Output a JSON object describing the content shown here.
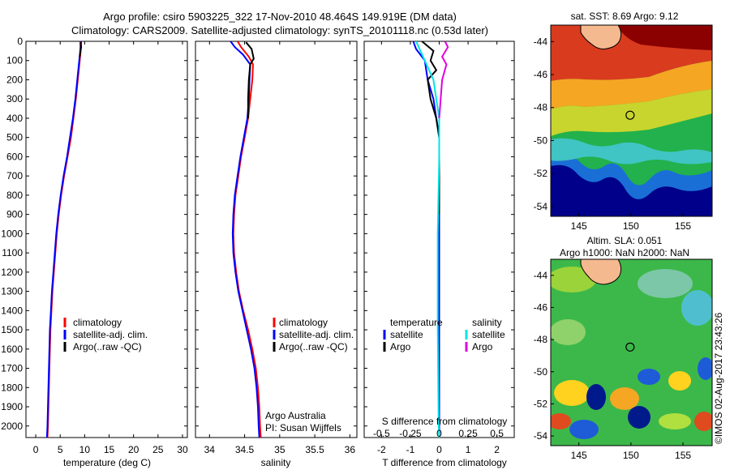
{
  "header": {
    "line1": "Argo profile: csiro 5903225_322 17-Nov-2010 48.464S 149.919E (DM data)",
    "line2": "Climatology: CARS2009. Satellite-adjusted climatology: synTS_20101118.nc (0.53d later)"
  },
  "watermark": "©IMOS 02-Aug-2017 23:43:26",
  "colors": {
    "climatology": "#ff0000",
    "satellite": "#0000ff",
    "argo": "#000000",
    "sal_satellite": "#00e5e5",
    "sal_argo": "#e000e0",
    "land": "#f5b98f"
  },
  "depth_ticks": [
    "0",
    "100",
    "200",
    "300",
    "400",
    "500",
    "600",
    "700",
    "800",
    "900",
    "1000",
    "1100",
    "1200",
    "1300",
    "1400",
    "1500",
    "1600",
    "1700",
    "1800",
    "1900",
    "2000"
  ],
  "chart_data": [
    {
      "type": "line",
      "xlabel": "temperature (deg C)",
      "ylabel": "",
      "xlim": [
        -2,
        31
      ],
      "ylim": [
        2060,
        0
      ],
      "xticks": [
        "0",
        "5",
        "10",
        "15",
        "20",
        "25",
        "30"
      ],
      "legend": {
        "placement": "middle-left",
        "entries": [
          "climatology",
          "satellite-adj. clim.",
          "Argo(..raw -QC)"
        ]
      },
      "series": [
        {
          "name": "climatology",
          "color": "#ff0000",
          "points": [
            [
              9.1,
              0
            ],
            [
              9.2,
              50
            ],
            [
              9.0,
              100
            ],
            [
              8.6,
              200
            ],
            [
              8.2,
              300
            ],
            [
              7.7,
              400
            ],
            [
              7.2,
              500
            ],
            [
              6.5,
              600
            ],
            [
              5.8,
              700
            ],
            [
              5.2,
              800
            ],
            [
              4.7,
              900
            ],
            [
              4.3,
              1000
            ],
            [
              4.0,
              1100
            ],
            [
              3.7,
              1200
            ],
            [
              3.4,
              1300
            ],
            [
              3.2,
              1400
            ],
            [
              3.0,
              1500
            ],
            [
              2.9,
              1600
            ],
            [
              2.8,
              1700
            ],
            [
              2.7,
              1800
            ],
            [
              2.6,
              1900
            ],
            [
              2.5,
              2000
            ],
            [
              2.4,
              2060
            ]
          ]
        },
        {
          "name": "satellite-adj. clim.",
          "color": "#0000ff",
          "points": [
            [
              9.3,
              0
            ],
            [
              9.1,
              50
            ],
            [
              8.9,
              100
            ],
            [
              8.5,
              200
            ],
            [
              8.1,
              300
            ],
            [
              7.6,
              400
            ],
            [
              7.0,
              500
            ],
            [
              6.4,
              600
            ],
            [
              5.7,
              700
            ],
            [
              5.1,
              800
            ],
            [
              4.6,
              900
            ],
            [
              4.2,
              1000
            ],
            [
              3.9,
              1100
            ],
            [
              3.6,
              1200
            ],
            [
              3.3,
              1300
            ],
            [
              3.1,
              1400
            ],
            [
              2.9,
              1500
            ],
            [
              2.8,
              1600
            ],
            [
              2.7,
              1700
            ],
            [
              2.6,
              1800
            ],
            [
              2.5,
              1900
            ],
            [
              2.4,
              2000
            ],
            [
              2.3,
              2060
            ]
          ]
        },
        {
          "name": "Argo(..raw -QC)",
          "color": "#000000",
          "points": [
            [
              9.2,
              5
            ],
            [
              9.3,
              30
            ],
            [
              9.1,
              60
            ],
            [
              9.0,
              80
            ]
          ]
        }
      ]
    },
    {
      "type": "line",
      "xlabel": "salinity",
      "ylabel": "",
      "xlim": [
        33.8,
        36.1
      ],
      "ylim": [
        2060,
        0
      ],
      "xticks": [
        "34",
        "34.5",
        "35",
        "35.5",
        "36"
      ],
      "legend": {
        "placement": "middle-right",
        "entries": [
          "climatology",
          "satellite-adj. clim.",
          "Argo(..raw -QC)"
        ]
      },
      "annotations": [
        "Argo Australia",
        "PI: Susan Wijffels"
      ],
      "series": [
        {
          "name": "climatology",
          "color": "#ff0000",
          "points": [
            [
              34.4,
              0
            ],
            [
              34.45,
              30
            ],
            [
              34.56,
              80
            ],
            [
              34.62,
              120
            ],
            [
              34.61,
              200
            ],
            [
              34.58,
              300
            ],
            [
              34.55,
              400
            ],
            [
              34.5,
              500
            ],
            [
              34.45,
              600
            ],
            [
              34.41,
              700
            ],
            [
              34.37,
              800
            ],
            [
              34.35,
              900
            ],
            [
              34.34,
              1000
            ],
            [
              34.35,
              1100
            ],
            [
              34.38,
              1200
            ],
            [
              34.42,
              1300
            ],
            [
              34.48,
              1400
            ],
            [
              34.55,
              1500
            ],
            [
              34.61,
              1600
            ],
            [
              34.66,
              1700
            ],
            [
              34.69,
              1800
            ],
            [
              34.71,
              1900
            ],
            [
              34.72,
              2000
            ],
            [
              34.73,
              2060
            ]
          ]
        },
        {
          "name": "satellite-adj. clim.",
          "color": "#0000ff",
          "points": [
            [
              34.3,
              0
            ],
            [
              34.36,
              30
            ],
            [
              34.48,
              70
            ],
            [
              34.58,
              120
            ],
            [
              34.57,
              200
            ],
            [
              34.56,
              300
            ],
            [
              34.54,
              400
            ],
            [
              34.49,
              500
            ],
            [
              34.44,
              600
            ],
            [
              34.4,
              700
            ],
            [
              34.36,
              800
            ],
            [
              34.34,
              900
            ],
            [
              34.33,
              1000
            ],
            [
              34.34,
              1100
            ],
            [
              34.37,
              1200
            ],
            [
              34.41,
              1300
            ],
            [
              34.47,
              1400
            ],
            [
              34.53,
              1500
            ],
            [
              34.59,
              1600
            ],
            [
              34.64,
              1700
            ],
            [
              34.67,
              1800
            ],
            [
              34.69,
              1900
            ],
            [
              34.7,
              2000
            ],
            [
              34.71,
              2060
            ]
          ]
        },
        {
          "name": "Argo(..raw -QC)",
          "color": "#000000",
          "points": [
            [
              34.52,
              5
            ],
            [
              34.6,
              40
            ],
            [
              34.63,
              90
            ],
            [
              34.58,
              120
            ],
            [
              34.56,
              200
            ],
            [
              34.55,
              300
            ],
            [
              34.55,
              400
            ]
          ]
        }
      ]
    },
    {
      "type": "line",
      "xlabel": "T difference from climatology",
      "xlabel_top": "S difference from climatology",
      "ylabel": "",
      "xlim": [
        -2.6,
        2.6
      ],
      "ylim": [
        2060,
        0
      ],
      "xticks": [
        "-2",
        "-1",
        "0",
        "1",
        "2"
      ],
      "xticks_top": [
        "-0.5",
        "-0.25",
        "0",
        "0.25",
        "0.5"
      ],
      "legend": {
        "placement": "middle",
        "entries": [
          "temperature",
          "satellite",
          "Argo",
          "salinity",
          "satellite",
          "Argo"
        ]
      },
      "series": [
        {
          "name": "satellite",
          "group": "temperature",
          "color": "#0000ff",
          "points": [
            [
              -0.9,
              0
            ],
            [
              -0.8,
              40
            ],
            [
              -0.5,
              100
            ],
            [
              -0.4,
              200
            ],
            [
              -0.2,
              300
            ],
            [
              -0.1,
              400
            ],
            [
              0,
              500
            ],
            [
              0,
              700
            ],
            [
              0,
              1000
            ],
            [
              0,
              1500
            ],
            [
              0,
              2000
            ],
            [
              0,
              2060
            ]
          ]
        },
        {
          "name": "Argo",
          "group": "temperature",
          "color": "#000000",
          "points": [
            [
              -0.6,
              0
            ],
            [
              -0.2,
              50
            ],
            [
              -0.3,
              100
            ],
            [
              -0.1,
              150
            ],
            [
              -0.4,
              200
            ],
            [
              -0.3,
              300
            ],
            [
              -0.1,
              400
            ],
            [
              0,
              500
            ],
            [
              0,
              600
            ],
            [
              0,
              700
            ],
            [
              0,
              800
            ],
            [
              0,
              900
            ]
          ]
        },
        {
          "name": "satellite",
          "group": "salinity",
          "color": "#00e5e5",
          "points": [
            [
              -0.8,
              0
            ],
            [
              -0.5,
              100
            ],
            [
              -0.2,
              200
            ],
            [
              -0.1,
              300
            ],
            [
              0,
              400
            ],
            [
              0,
              600
            ],
            [
              -0.05,
              1000
            ],
            [
              -0.05,
              1500
            ],
            [
              -0.02,
              2000
            ],
            [
              0,
              2060
            ]
          ]
        },
        {
          "name": "Argo",
          "group": "salinity",
          "color": "#e000e0",
          "points": [
            [
              0.2,
              0
            ],
            [
              0.3,
              30
            ],
            [
              0.1,
              80
            ],
            [
              0.25,
              120
            ],
            [
              0.1,
              200
            ],
            [
              0.05,
              300
            ],
            [
              0,
              400
            ]
          ]
        }
      ]
    },
    {
      "type": "heatmap",
      "title": "sat. SST: 8.69 Argo: 9.12",
      "xlim": [
        142.3,
        157.8
      ],
      "ylim": [
        -54.6,
        -43.0
      ],
      "xticks": [
        "145",
        "150",
        "155"
      ],
      "yticks": [
        "-44",
        "-46",
        "-48",
        "-50",
        "-52",
        "-54"
      ],
      "marker": [
        149.919,
        -48.464
      ]
    },
    {
      "type": "heatmap",
      "title": "Altim. SLA: 0.051",
      "subtitle": "Argo h1000: NaN h2000: NaN",
      "xlim": [
        142.3,
        157.8
      ],
      "ylim": [
        -54.6,
        -43.0
      ],
      "xticks": [
        "145",
        "150",
        "155"
      ],
      "yticks": [
        "-44",
        "-46",
        "-48",
        "-50",
        "-52",
        "-54"
      ],
      "marker": [
        149.919,
        -48.464
      ]
    }
  ]
}
